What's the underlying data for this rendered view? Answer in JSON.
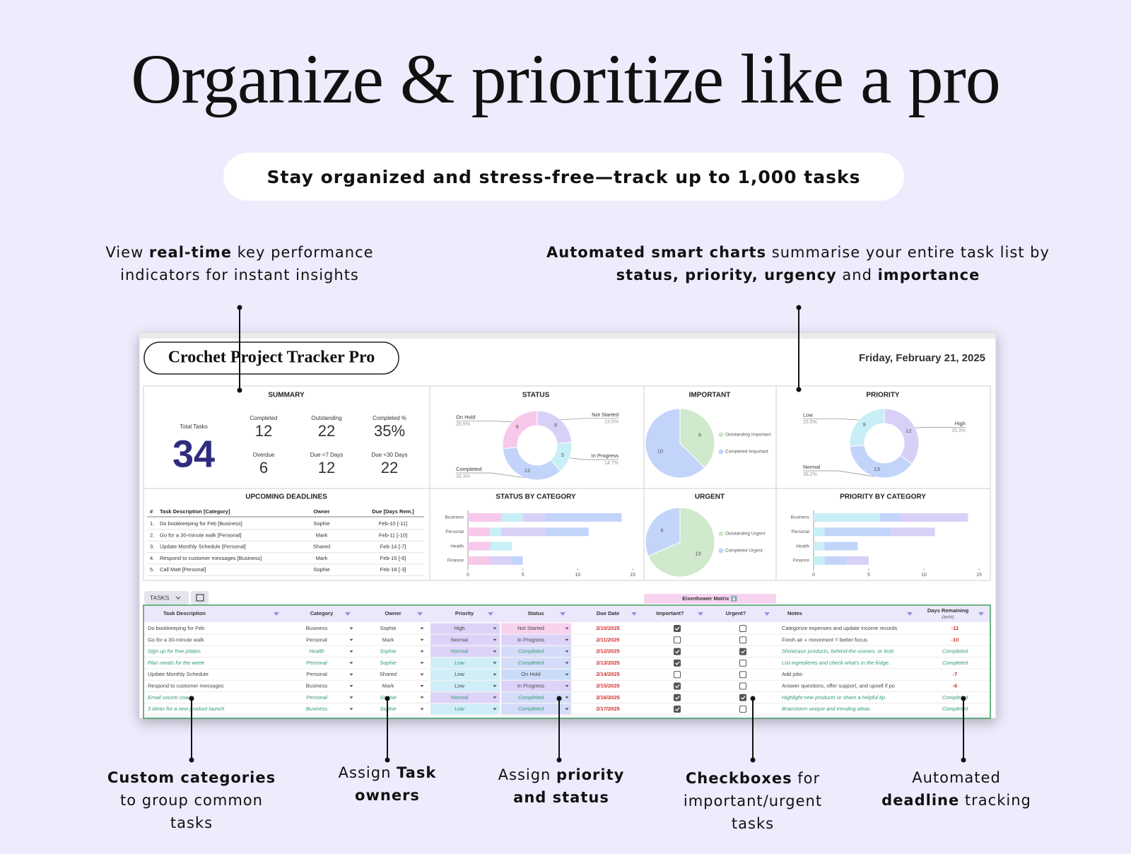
{
  "headline": "Organize & prioritize like a pro",
  "subheadline": "Stay organized and stress-free—track up to 1,000 tasks",
  "callouts_top": [
    {
      "lines": [
        [
          {
            "text": "View "
          },
          {
            "text": "real-time",
            "bold": true
          },
          {
            "text": " key performance"
          }
        ],
        [
          {
            "text": "indicators for instant insights"
          }
        ]
      ]
    },
    {
      "lines": [
        [
          {
            "text": "Automated smart charts",
            "bold": true
          },
          {
            "text": " summarise your entire task list by"
          }
        ],
        [
          {
            "text": "status, priority, urgency",
            "bold": true
          },
          {
            "text": " and "
          },
          {
            "text": "importance",
            "bold": true
          }
        ]
      ]
    }
  ],
  "callouts_bottom": [
    {
      "lines": [
        [
          {
            "text": "Custom categories",
            "bold": true
          }
        ],
        [
          {
            "text": "to group common"
          }
        ],
        [
          {
            "text": "tasks"
          }
        ]
      ]
    },
    {
      "lines": [
        [
          {
            "text": "Assign "
          },
          {
            "text": "Task",
            "bold": true
          }
        ],
        [
          {
            "text": "owners",
            "bold": true
          }
        ]
      ]
    },
    {
      "lines": [
        [
          {
            "text": "Assign "
          },
          {
            "text": "priority",
            "bold": true
          }
        ],
        [
          {
            "text": "and status",
            "bold": true
          }
        ]
      ]
    },
    {
      "lines": [
        [
          {
            "text": "Checkboxes",
            "bold": true
          },
          {
            "text": " for"
          }
        ],
        [
          {
            "text": "important/urgent"
          }
        ],
        [
          {
            "text": "tasks"
          }
        ]
      ]
    },
    {
      "lines": [
        [
          {
            "text": "Automated"
          }
        ],
        [
          {
            "text": "deadline",
            "bold": true
          },
          {
            "text": " tracking"
          }
        ]
      ]
    }
  ],
  "dashboard": {
    "title": "Crochet Project Tracker Pro",
    "date": "Friday, February 21, 2025",
    "summary": {
      "title": "SUMMARY",
      "total_label": "Total Tasks",
      "total": 34,
      "kpis": [
        {
          "label": "Completed",
          "value": 12
        },
        {
          "label": "Outstanding",
          "value": 22
        },
        {
          "label": "Completed %",
          "value": "35%"
        },
        {
          "label": "Overdue",
          "value": 6
        },
        {
          "label": "Due <7 Days",
          "value": 12
        },
        {
          "label": "Due <30 Days",
          "value": 22
        }
      ]
    },
    "deadlines": {
      "title": "UPCOMING DEADLINES",
      "columns": [
        "#",
        "Task Description [Category]",
        "Owner",
        "Due [Days Rem.]"
      ],
      "rows": [
        [
          "1.",
          "Do bookkeeping for Feb [Business]",
          "Sophie",
          "Feb-10 [-11]"
        ],
        [
          "2.",
          "Go for a 30-minute walk [Personal]",
          "Mark",
          "Feb-11 [-10]"
        ],
        [
          "3.",
          "Update Monthly Schedule [Personal]",
          "Shared",
          "Feb-14 [-7]"
        ],
        [
          "4.",
          "Respond to customer messages [Business]",
          "Mark",
          "Feb-15 [-6]"
        ],
        [
          "5.",
          "Call Matt [Personal]",
          "Sophie",
          "Feb-18 [-3]"
        ]
      ]
    },
    "status_chart": {
      "type": "donut",
      "title": "STATUS",
      "slices": [
        {
          "name": "Not Started",
          "value": 8,
          "percent": "23.5%",
          "color": "#d9d0f8"
        },
        {
          "name": "In Progress",
          "value": 5,
          "percent": "14.7%",
          "color": "#c8eef6"
        },
        {
          "name": "Completed",
          "value": 12,
          "percent": "35.3%",
          "color": "#c3d4fb"
        },
        {
          "name": "On Hold",
          "value": 9,
          "percent": "26.5%",
          "color": "#f7c8ea"
        }
      ]
    },
    "important_chart": {
      "type": "pie",
      "title": "IMPORTANT",
      "slices": [
        {
          "name": "Outstanding Important",
          "value": 6,
          "color": "#d0e8cb"
        },
        {
          "name": "Completed Important",
          "value": 10,
          "color": "#c3d4fb"
        }
      ]
    },
    "priority_chart": {
      "type": "donut",
      "title": "PRIORITY",
      "slices": [
        {
          "name": "High",
          "value": 12,
          "percent": "35.3%",
          "color": "#d9d0f8"
        },
        {
          "name": "Normal",
          "value": 13,
          "percent": "38.2%",
          "color": "#c3d4fb"
        },
        {
          "name": "Low",
          "value": 9,
          "percent": "26.5%",
          "color": "#c8eef6"
        }
      ]
    },
    "status_by_category": {
      "type": "stacked_bar",
      "title": "STATUS BY CATEGORY",
      "categories": [
        "Business",
        "Personal",
        "Health",
        "Finance"
      ],
      "series": [
        {
          "color": "#f7c8ea",
          "values": [
            3,
            2,
            2,
            2
          ]
        },
        {
          "color": "#c8eef6",
          "values": [
            2,
            1,
            2,
            0
          ]
        },
        {
          "color": "#d9d0f8",
          "values": [
            2,
            4,
            0,
            2
          ]
        },
        {
          "color": "#c3d4fb",
          "values": [
            7,
            4,
            0,
            1
          ]
        }
      ],
      "xlim": [
        0,
        15
      ],
      "xticks": [
        0,
        5,
        10,
        15
      ]
    },
    "urgent_chart": {
      "type": "pie",
      "title": "URGENT",
      "slices": [
        {
          "name": "Outstanding Urgent",
          "value": 13,
          "color": "#d0e8cb"
        },
        {
          "name": "Completed Urgent",
          "value": 6,
          "color": "#c3d4fb"
        }
      ]
    },
    "priority_by_category": {
      "type": "stacked_bar",
      "title": "PRIORITY BY CATEGORY",
      "categories": [
        "Business",
        "Personal",
        "Health",
        "Finance"
      ],
      "series": [
        {
          "color": "#c8eef6",
          "values": [
            6,
            1,
            1,
            1
          ]
        },
        {
          "color": "#c3d4fb",
          "values": [
            2,
            6,
            3,
            2
          ]
        },
        {
          "color": "#d9d0f8",
          "values": [
            6,
            4,
            0,
            2
          ]
        }
      ],
      "xlim": [
        0,
        15
      ],
      "xticks": [
        0,
        5,
        10,
        15
      ]
    },
    "tasks": {
      "tab": "TASKS",
      "matrix_label": "Eisenhower Matrix ⬇️",
      "columns": [
        "Task Description",
        "Category",
        "Owner",
        "Priority",
        "Status",
        "Due Date",
        "Important?",
        "Urgent?",
        "Notes",
        "Days Remaining"
      ],
      "days_sublabel": "(auto)",
      "rows": [
        {
          "task": "Do bookkeeping for Feb",
          "category": "Business",
          "owner": "Sophie",
          "priority": "High",
          "priority_color": "#ddd3f9",
          "status": "Not Started",
          "status_color": "#f9d2ee",
          "due": "2/10/2025",
          "important": true,
          "urgent": false,
          "notes": "Categorize expenses and update income records",
          "days": -11
        },
        {
          "task": "Go for a 30-minute walk",
          "category": "Personal",
          "owner": "Mark",
          "priority": "Normal",
          "priority_color": "#ddd3f9",
          "status": "In Progress",
          "status_color": "#ddd3f9",
          "due": "2/11/2025",
          "important": false,
          "urgent": false,
          "notes": "Fresh air + movement = better focus.",
          "days": -10
        },
        {
          "task": "Sign up for free pilates",
          "category": "Health",
          "owner": "Sophie",
          "priority": "Normal",
          "priority_color": "#ddd3f9",
          "status": "Completed",
          "status_color": "#d5dcfa",
          "due": "2/12/2025",
          "important": true,
          "urgent": true,
          "notes": "Showcase products, behind-the-scenes, or testi",
          "days": "Completed"
        },
        {
          "task": "Plan meals for the week",
          "category": "Personal",
          "owner": "Sophie",
          "priority": "Low",
          "priority_color": "#d0eef7",
          "status": "Completed",
          "status_color": "#d5dcfa",
          "due": "2/13/2025",
          "important": true,
          "urgent": false,
          "notes": "List ingredients and check what's in the fridge.",
          "days": "Completed"
        },
        {
          "task": "Update Monthly Schedule",
          "category": "Personal",
          "owner": "Shared",
          "priority": "Low",
          "priority_color": "#d0eef7",
          "status": "On Hold",
          "status_color": "#cbdcfb",
          "due": "2/14/2025",
          "important": false,
          "urgent": false,
          "notes": "Add jobs",
          "days": -7
        },
        {
          "task": "Respond to customer messages",
          "category": "Business",
          "owner": "Mark",
          "priority": "Low",
          "priority_color": "#d0eef7",
          "status": "In Progress",
          "status_color": "#ddd3f9",
          "due": "2/15/2025",
          "important": true,
          "urgent": false,
          "notes": "Answer questions, offer support, and upsell if po",
          "days": -6
        },
        {
          "task": "Email soccer coach",
          "category": "Personal",
          "owner": "Sophie",
          "priority": "Normal",
          "priority_color": "#ddd3f9",
          "status": "Completed",
          "status_color": "#d5dcfa",
          "due": "2/16/2025",
          "important": true,
          "urgent": true,
          "notes": "Highlight new products or share a helpful tip.",
          "days": "Completed"
        },
        {
          "task": "3 ideas for a new product launch",
          "category": "Business",
          "owner": "Sophie",
          "priority": "Low",
          "priority_color": "#d0eef7",
          "status": "Completed",
          "status_color": "#d5dcfa",
          "due": "2/17/2025",
          "important": true,
          "urgent": false,
          "notes": "Brainstorm unique and trending ideas.",
          "days": "Completed"
        }
      ]
    }
  }
}
